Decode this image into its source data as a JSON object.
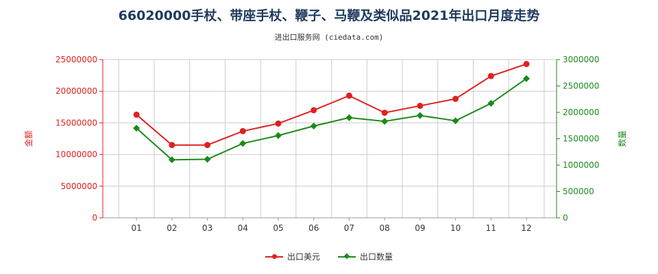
{
  "page": {
    "title": "66020000手杖、带座手杖、鞭子、马鞭及类似品2021年出口月度走势",
    "subtitle": "进出口服务网 (ciedata.com)"
  },
  "legend": {
    "usd": "出口美元",
    "qty": "出口数量"
  },
  "colors": {
    "usd": "#e02020",
    "qty": "#1a8a1a",
    "grid": "#cccccc",
    "axis_left": "#e02020",
    "axis_right": "#1a8a1a"
  },
  "chart_data": {
    "type": "line",
    "categories": [
      "01",
      "02",
      "03",
      "04",
      "05",
      "06",
      "07",
      "08",
      "09",
      "10",
      "11",
      "12"
    ],
    "series": [
      {
        "name": "出口美元",
        "axis": "left",
        "values": [
          16300000,
          11500000,
          11500000,
          13700000,
          14900000,
          17000000,
          19300000,
          16600000,
          17700000,
          18800000,
          22400000,
          24300000
        ]
      },
      {
        "name": "出口数量",
        "axis": "right",
        "values": [
          1700000,
          1100000,
          1110000,
          1410000,
          1560000,
          1740000,
          1900000,
          1830000,
          1940000,
          1840000,
          2170000,
          2640000
        ]
      }
    ],
    "ylabel_left": "金额",
    "ylabel_right": "数量",
    "ylim_left": [
      0,
      25000000
    ],
    "ylim_right": [
      0,
      3000000
    ],
    "yticks_left": [
      "0",
      "5000000",
      "10000000",
      "15000000",
      "20000000",
      "25000000"
    ],
    "yticks_right": [
      "0",
      "500000",
      "1000000",
      "1500000",
      "2000000",
      "2500000",
      "3000000"
    ],
    "grid": true,
    "legend_position": "bottom"
  }
}
